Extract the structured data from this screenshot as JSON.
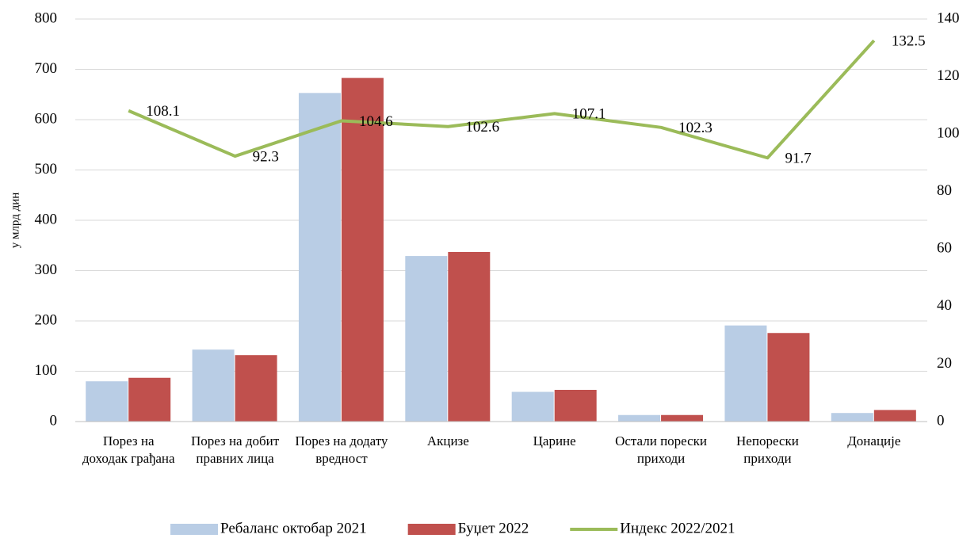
{
  "chart_data": {
    "type": "bar",
    "y_label": "у млрд дин",
    "categories": [
      "Порез на доходак грађана",
      "Порез на добит правних лица",
      "Порез на додату вредност",
      "Акцизе",
      "Царине",
      "Остали порески приходи",
      "Непорески приходи",
      "Донације"
    ],
    "series": [
      {
        "name": "Ребаланс октобар 2021",
        "color": "#b9cde5",
        "type": "bar",
        "values": [
          80,
          143,
          653,
          329,
          59,
          13,
          191,
          17
        ]
      },
      {
        "name": "Буџет 2022",
        "color": "#c0504d",
        "type": "bar",
        "values": [
          87,
          132,
          683,
          337,
          63,
          13,
          176,
          23
        ]
      },
      {
        "name": "Индекс 2022/2021",
        "color": "#9bbb59",
        "type": "line",
        "axis": "y2",
        "values": [
          108.1,
          92.3,
          104.6,
          102.6,
          107.1,
          102.3,
          91.7,
          132.5
        ]
      }
    ],
    "ylim": [
      0,
      800
    ],
    "yticks": [
      0,
      100,
      200,
      300,
      400,
      500,
      600,
      700,
      800
    ],
    "y2lim": [
      0,
      140
    ],
    "y2ticks": [
      0,
      20,
      40,
      60,
      80,
      100,
      120,
      140
    ],
    "grid": true,
    "legend": "bottom"
  }
}
